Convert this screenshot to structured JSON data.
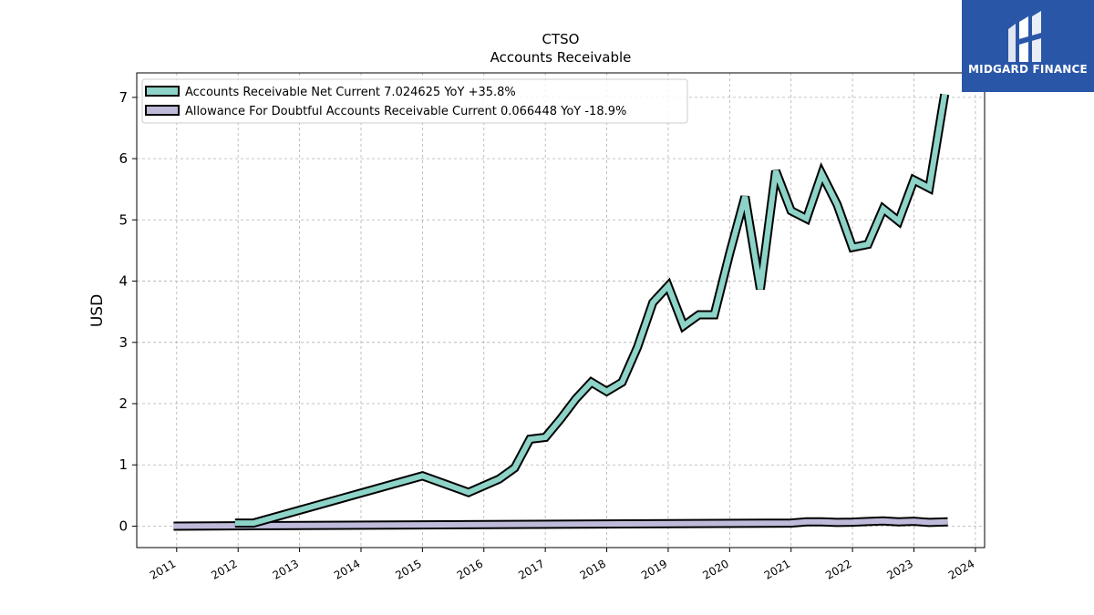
{
  "brand": {
    "name": "MIDGARD FINANCE"
  },
  "chart_data": {
    "type": "line",
    "title": "CTSO",
    "subtitle": "Accounts Receivable",
    "xlabel": "",
    "ylabel": "USD",
    "xlim": [
      2010.35,
      2024.15
    ],
    "ylim": [
      -0.35,
      7.4
    ],
    "x_ticks": [
      "2011",
      "2012",
      "2013",
      "2014",
      "2015",
      "2016",
      "2017",
      "2018",
      "2019",
      "2020",
      "2021",
      "2022",
      "2023",
      "2024"
    ],
    "y_ticks": [
      "0",
      "1",
      "2",
      "3",
      "4",
      "5",
      "6",
      "7"
    ],
    "grid": true,
    "legend_position": "top-left",
    "series": [
      {
        "name": "Accounts Receivable Net Current  7.024625 YoY +35.8%",
        "color": "#8dd3c7",
        "x": [
          2011.95,
          2012.25,
          2015.0,
          2015.75,
          2016.25,
          2016.5,
          2016.75,
          2017.0,
          2017.25,
          2017.5,
          2017.75,
          2018.0,
          2018.25,
          2018.5,
          2018.75,
          2019.0,
          2019.25,
          2019.5,
          2019.75,
          2020.0,
          2020.25,
          2020.5,
          2020.75,
          2021.0,
          2021.25,
          2021.5,
          2021.75,
          2022.0,
          2022.25,
          2022.5,
          2022.75,
          2023.0,
          2023.25,
          2023.5
        ],
        "y": [
          0.05,
          0.05,
          0.82,
          0.55,
          0.77,
          0.95,
          1.42,
          1.45,
          1.75,
          2.08,
          2.35,
          2.2,
          2.35,
          2.92,
          3.65,
          3.92,
          3.27,
          3.45,
          3.45,
          4.45,
          5.38,
          3.87,
          5.8,
          5.15,
          5.02,
          5.75,
          5.25,
          4.55,
          4.6,
          5.18,
          4.98,
          5.65,
          5.52,
          7.05
        ]
      },
      {
        "name": "Allowance For Doubtful Accounts Receivable Current  0.066448 YoY -18.9%",
        "color": "#bebada",
        "x": [
          2010.95,
          2021.0,
          2021.25,
          2021.5,
          2021.75,
          2022.0,
          2022.25,
          2022.5,
          2022.75,
          2023.0,
          2023.25,
          2023.55
        ],
        "y": [
          0.0,
          0.05,
          0.07,
          0.07,
          0.06,
          0.065,
          0.075,
          0.085,
          0.07,
          0.08,
          0.06,
          0.07
        ]
      }
    ]
  }
}
